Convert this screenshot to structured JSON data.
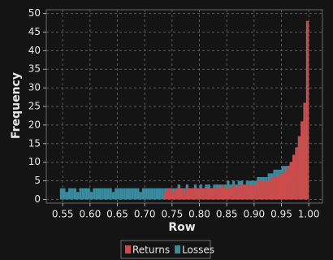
{
  "chart_data": {
    "type": "histogram",
    "x_label": "Row",
    "y_label": "Frequency",
    "bins": [
      0.545,
      0.55,
      0.555,
      0.56,
      0.565,
      0.57,
      0.575,
      0.58,
      0.585,
      0.59,
      0.595,
      0.6,
      0.605,
      0.61,
      0.615,
      0.62,
      0.625,
      0.63,
      0.635,
      0.64,
      0.645,
      0.65,
      0.655,
      0.66,
      0.665,
      0.67,
      0.675,
      0.68,
      0.685,
      0.69,
      0.695,
      0.7,
      0.705,
      0.71,
      0.715,
      0.72,
      0.725,
      0.73,
      0.735,
      0.74,
      0.745,
      0.75,
      0.755,
      0.76,
      0.765,
      0.77,
      0.775,
      0.78,
      0.785,
      0.79,
      0.795,
      0.8,
      0.805,
      0.81,
      0.815,
      0.82,
      0.825,
      0.83,
      0.835,
      0.84,
      0.845,
      0.85,
      0.855,
      0.86,
      0.865,
      0.87,
      0.875,
      0.88,
      0.885,
      0.89,
      0.895,
      0.9,
      0.905,
      0.91,
      0.915,
      0.92,
      0.925,
      0.93,
      0.935,
      0.94,
      0.945,
      0.95,
      0.955,
      0.96,
      0.965,
      0.97,
      0.975,
      0.98,
      0.985,
      0.99,
      0.995,
      1.0
    ],
    "series": [
      {
        "name": "Losses",
        "color": "#3a8aa0",
        "values": [
          3,
          3,
          2,
          3,
          3,
          3,
          2,
          3,
          3,
          3,
          3,
          2,
          3,
          3,
          3,
          3,
          3,
          3,
          3,
          2,
          3,
          3,
          3,
          3,
          3,
          3,
          3,
          3,
          3,
          2,
          3,
          3,
          3,
          3,
          3,
          3,
          3,
          3,
          3,
          3,
          3,
          3,
          3,
          4,
          3,
          3,
          4,
          3,
          3,
          4,
          3,
          4,
          3,
          4,
          4,
          3,
          4,
          4,
          4,
          3,
          4,
          5,
          4,
          5,
          4,
          5,
          5,
          4,
          5,
          5,
          5,
          5,
          6,
          6,
          6,
          6,
          7,
          7,
          8,
          8,
          8,
          9,
          9,
          9,
          10,
          11,
          13,
          15,
          17,
          20,
          18
        ]
      },
      {
        "name": "Returns",
        "color": "#cc4c4c",
        "values": [
          0,
          0,
          0,
          0,
          0,
          0,
          0,
          0,
          0,
          0,
          0,
          0,
          0,
          0,
          0,
          0,
          0,
          0,
          0,
          0,
          0,
          0,
          0,
          0,
          0,
          0,
          0,
          0,
          0,
          0,
          0,
          0,
          0,
          0,
          0,
          0,
          0,
          0,
          2,
          3,
          3,
          2,
          3,
          3,
          3,
          2,
          3,
          3,
          3,
          3,
          3,
          3,
          3,
          3,
          3,
          3,
          3,
          3,
          3,
          4,
          3,
          3,
          3,
          4,
          3,
          4,
          4,
          4,
          4,
          4,
          4,
          4,
          5,
          5,
          5,
          5,
          5,
          6,
          6,
          6,
          7,
          7,
          8,
          9,
          10,
          12,
          14,
          17,
          21,
          26,
          48
        ]
      }
    ],
    "xlim": [
      0.52,
      1.025
    ],
    "ylim": [
      -1,
      51
    ],
    "xticks": [
      0.55,
      {
        "value": 0.6,
        "label": "0.60"
      },
      0.65,
      {
        "value": 0.7,
        "label": "0.70"
      },
      0.75,
      {
        "value": 0.8,
        "label": "0.80"
      },
      0.85,
      {
        "value": 0.9,
        "label": "0.90"
      },
      0.95,
      {
        "value": 1.0,
        "label": "1.00"
      }
    ],
    "yticks": [
      0,
      5,
      10,
      15,
      20,
      25,
      30,
      35,
      40,
      45,
      50
    ],
    "grid": true,
    "legend": "bottom"
  }
}
